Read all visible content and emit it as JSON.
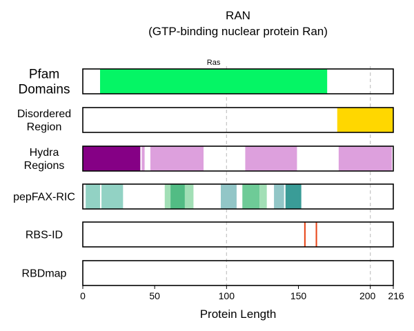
{
  "chart_data": {
    "type": "protein-domain-tracks",
    "title": "RAN",
    "subtitle": "(GTP-binding nuclear protein Ran)",
    "xlabel": "Protein Length",
    "xlim": [
      0,
      216
    ],
    "xticks": [
      0,
      50,
      100,
      150,
      200,
      216
    ],
    "xtick_labels": [
      "0",
      "50",
      "100",
      "150",
      "200",
      "216"
    ],
    "gridlines_x": [
      100,
      200
    ],
    "tracks": [
      {
        "label": [
          "Pfam",
          "Domains"
        ],
        "label_size": "large",
        "segments": [
          {
            "start": 12,
            "end": 170,
            "color": "#05f565",
            "label": "Ras"
          }
        ]
      },
      {
        "label": [
          "Disordered",
          "Region"
        ],
        "segments": [
          {
            "start": 177,
            "end": 216,
            "color": "#ffd700"
          }
        ]
      },
      {
        "label": [
          "Hydra",
          "Regions"
        ],
        "segments": [
          {
            "start": 0,
            "end": 40,
            "color": "#850085"
          },
          {
            "start": 41,
            "end": 43,
            "color": "#dda0dd"
          },
          {
            "start": 47,
            "end": 84,
            "color": "#dda0dd"
          },
          {
            "start": 113,
            "end": 149,
            "color": "#dda0dd"
          },
          {
            "start": 178,
            "end": 215,
            "color": "#dda0dd"
          }
        ]
      },
      {
        "label": [
          "pepFAX-RIC"
        ],
        "segments": [
          {
            "start": 2,
            "end": 12,
            "color": "#92d2c4"
          },
          {
            "start": 13,
            "end": 28,
            "color": "#92d2c4"
          },
          {
            "start": 57,
            "end": 61,
            "color": "#a2dfb6"
          },
          {
            "start": 61,
            "end": 71,
            "color": "#52bc84"
          },
          {
            "start": 71,
            "end": 77,
            "color": "#a2dfb6"
          },
          {
            "start": 96,
            "end": 107,
            "color": "#92c6c7"
          },
          {
            "start": 111,
            "end": 123,
            "color": "#6ecb97"
          },
          {
            "start": 123,
            "end": 128,
            "color": "#a2dfb6"
          },
          {
            "start": 133,
            "end": 140,
            "color": "#92c6c7"
          },
          {
            "start": 141,
            "end": 152,
            "color": "#3a9c97"
          }
        ]
      },
      {
        "label": [
          "RBS-ID"
        ],
        "segments": [
          {
            "start": 154,
            "end": 155,
            "color": "#e8461a"
          },
          {
            "start": 162,
            "end": 163,
            "color": "#e8461a"
          }
        ]
      },
      {
        "label": [
          "RBDmap"
        ],
        "segments": []
      }
    ]
  }
}
